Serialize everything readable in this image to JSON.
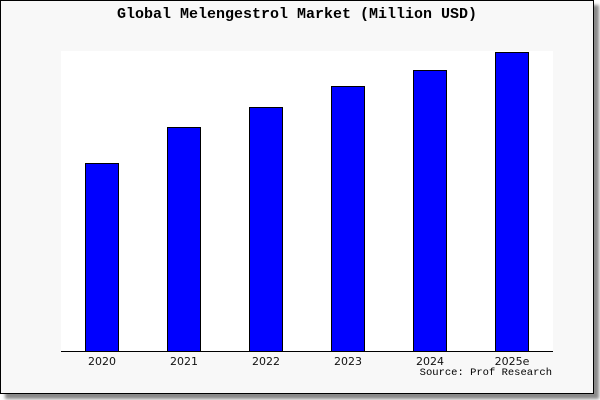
{
  "header": {
    "title": "Global Melengestrol Market (Million USD)"
  },
  "footer": {
    "source_label": "Source: Prof Research"
  },
  "colors": {
    "figure_background": "#f8f8f8",
    "plot_background": "#ffffff",
    "bar_fill": "#0000ff",
    "bar_border": "#000000",
    "axis_line": "#000000",
    "frame_border": "#000000",
    "frame_shadow": "#8a8a8a",
    "text": "#000000"
  },
  "chart_data": {
    "type": "bar",
    "title": "Global Melengestrol Market (Million USD)",
    "units": "Million USD",
    "categories": [
      "2020",
      "2021",
      "2022",
      "2023",
      "2024",
      "2025e"
    ],
    "values": [
      63,
      75,
      81.5,
      88.5,
      94,
      100
    ],
    "value_note": "no y-axis ticks shown; values estimated from bar heights, normalized so 2025e = 100",
    "xlabel": "",
    "ylabel": "",
    "ylim": [
      0,
      100.35
    ],
    "grid": false,
    "legend": false,
    "source": "Source: Prof Research"
  }
}
